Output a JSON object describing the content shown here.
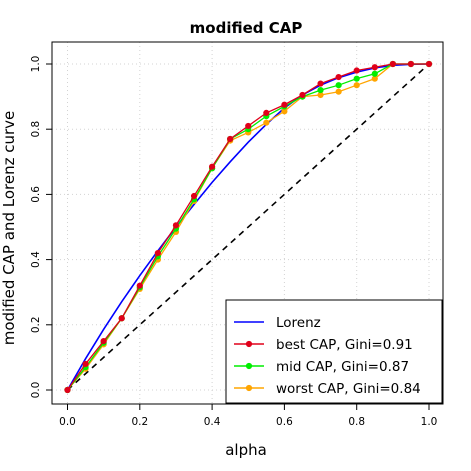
{
  "chart_data": {
    "type": "line",
    "title": "modified CAP",
    "xlabel": "alpha",
    "ylabel": "modified CAP and Lorenz curve",
    "xlim": [
      0,
      1
    ],
    "ylim": [
      0,
      1
    ],
    "x_ticks": [
      "0.0",
      "0.2",
      "0.4",
      "0.6",
      "0.8",
      "1.0"
    ],
    "y_ticks": [
      "0.0",
      "0.2",
      "0.4",
      "0.6",
      "0.8",
      "1.0"
    ],
    "grid": true,
    "legend_position": "bottom-right",
    "diagonal": {
      "style": "dashed",
      "color": "#000000",
      "x": [
        0,
        1
      ],
      "y": [
        0,
        1
      ]
    },
    "x": [
      0,
      0.05,
      0.1,
      0.15,
      0.2,
      0.25,
      0.3,
      0.35,
      0.4,
      0.45,
      0.5,
      0.55,
      0.6,
      0.65,
      0.7,
      0.75,
      0.8,
      0.85,
      0.9,
      0.95,
      1.0
    ],
    "series": [
      {
        "name": "Lorenz",
        "color": "#0000ff",
        "markers": false,
        "values": [
          0,
          0.096,
          0.186,
          0.271,
          0.351,
          0.427,
          0.5,
          0.569,
          0.637,
          0.7,
          0.76,
          0.815,
          0.865,
          0.905,
          0.935,
          0.958,
          0.975,
          0.988,
          0.996,
          0.999,
          1.0
        ]
      },
      {
        "name": "best CAP, Gini=0.91",
        "color": "#e0001a",
        "markers": true,
        "values": [
          0,
          0.08,
          0.15,
          0.22,
          0.32,
          0.42,
          0.505,
          0.595,
          0.685,
          0.77,
          0.81,
          0.85,
          0.875,
          0.905,
          0.94,
          0.96,
          0.98,
          0.99,
          1.0,
          1.0,
          1.0
        ]
      },
      {
        "name": "mid CAP, Gini=0.87",
        "color": "#00ee00",
        "markers": true,
        "values": [
          0,
          0.07,
          0.145,
          0.22,
          0.315,
          0.41,
          0.495,
          0.585,
          0.68,
          0.77,
          0.8,
          0.84,
          0.87,
          0.9,
          0.92,
          0.935,
          0.955,
          0.97,
          1.0,
          1.0,
          1.0
        ]
      },
      {
        "name": "worst CAP, Gini=0.84",
        "color": "#ffa500",
        "markers": true,
        "values": [
          0,
          0.065,
          0.14,
          0.22,
          0.31,
          0.4,
          0.485,
          0.58,
          0.68,
          0.765,
          0.79,
          0.82,
          0.855,
          0.9,
          0.905,
          0.915,
          0.935,
          0.955,
          1.0,
          1.0,
          1.0
        ]
      }
    ]
  }
}
